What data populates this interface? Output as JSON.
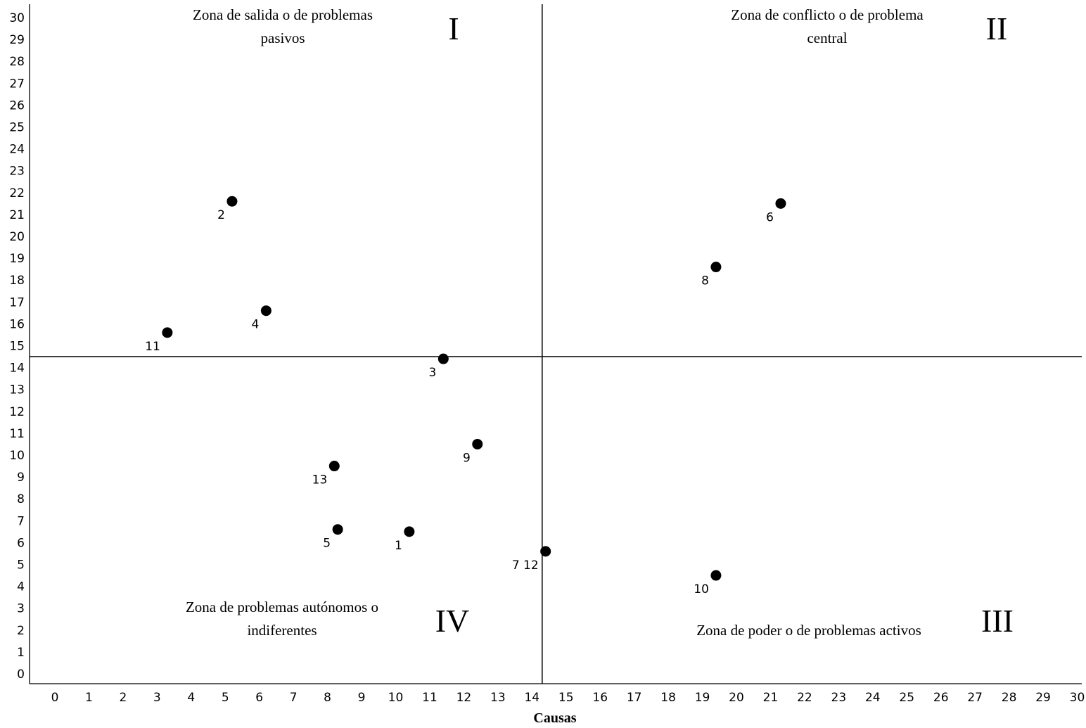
{
  "chart_data": {
    "type": "scatter",
    "title": "",
    "xlabel": "Causas",
    "ylabel": "",
    "xlim": [
      0,
      30
    ],
    "ylim": [
      0,
      30
    ],
    "x_ticks": [
      0,
      1,
      2,
      3,
      4,
      5,
      6,
      7,
      8,
      9,
      10,
      11,
      12,
      13,
      14,
      15,
      16,
      17,
      18,
      19,
      20,
      21,
      22,
      23,
      24,
      25,
      26,
      27,
      28,
      29,
      30
    ],
    "y_ticks": [
      0,
      1,
      2,
      3,
      4,
      5,
      6,
      7,
      8,
      9,
      10,
      11,
      12,
      13,
      14,
      15,
      16,
      17,
      18,
      19,
      20,
      21,
      22,
      23,
      24,
      25,
      26,
      27,
      28,
      29,
      30
    ],
    "grid": false,
    "dividers": {
      "x": 14.3,
      "y": 14.5
    },
    "points": [
      {
        "label": "1",
        "x": 10.4,
        "y": 6.5
      },
      {
        "label": "2",
        "x": 5.2,
        "y": 21.6
      },
      {
        "label": "3",
        "x": 11.4,
        "y": 14.4
      },
      {
        "label": "4",
        "x": 6.2,
        "y": 16.6
      },
      {
        "label": "5",
        "x": 8.3,
        "y": 6.6
      },
      {
        "label": "6",
        "x": 21.3,
        "y": 21.5
      },
      {
        "label": "7 12",
        "x": 14.4,
        "y": 5.6
      },
      {
        "label": "8",
        "x": 19.4,
        "y": 18.6
      },
      {
        "label": "9",
        "x": 12.4,
        "y": 10.5
      },
      {
        "label": "10",
        "x": 19.4,
        "y": 4.5
      },
      {
        "label": "11",
        "x": 3.3,
        "y": 15.6
      },
      {
        "label": "13",
        "x": 8.2,
        "y": 9.5
      }
    ],
    "quadrants": [
      {
        "numeral": "I",
        "text": [
          "Zona de salida o de problemas",
          "pasivos"
        ]
      },
      {
        "numeral": "II",
        "text": [
          "Zona de conflicto o de problema",
          "central"
        ]
      },
      {
        "numeral": "III",
        "text": [
          "Zona de poder o de problemas activos"
        ]
      },
      {
        "numeral": "IV",
        "text": [
          "Zona de problemas autónomos o",
          "indiferentes"
        ]
      }
    ]
  }
}
